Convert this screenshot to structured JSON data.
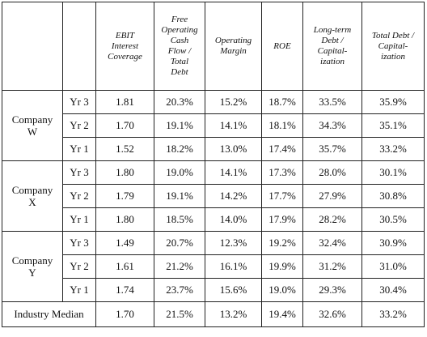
{
  "table": {
    "columns": [
      "EBIT\nInterest\nCoverage",
      "Free\nOperating\nCash\nFlow /\nTotal\nDebt",
      "Operating\nMargin",
      "ROE",
      "Long-term\nDebt /\nCapital-\nization",
      "Total Debt /\nCapital-\nization"
    ],
    "groups": [
      {
        "name": "Company\nW",
        "rows": [
          {
            "year": "Yr 3",
            "cells": [
              "1.81",
              "20.3%",
              "15.2%",
              "18.7%",
              "33.5%",
              "35.9%"
            ]
          },
          {
            "year": "Yr 2",
            "cells": [
              "1.70",
              "19.1%",
              "14.1%",
              "18.1%",
              "34.3%",
              "35.1%"
            ]
          },
          {
            "year": "Yr 1",
            "cells": [
              "1.52",
              "18.2%",
              "13.0%",
              "17.4%",
              "35.7%",
              "33.2%"
            ]
          }
        ]
      },
      {
        "name": "Company\nX",
        "rows": [
          {
            "year": "Yr 3",
            "cells": [
              "1.80",
              "19.0%",
              "14.1%",
              "17.3%",
              "28.0%",
              "30.1%"
            ]
          },
          {
            "year": "Yr 2",
            "cells": [
              "1.79",
              "19.1%",
              "14.2%",
              "17.7%",
              "27.9%",
              "30.8%"
            ]
          },
          {
            "year": "Yr 1",
            "cells": [
              "1.80",
              "18.5%",
              "14.0%",
              "17.9%",
              "28.2%",
              "30.5%"
            ]
          }
        ]
      },
      {
        "name": "Company\nY",
        "rows": [
          {
            "year": "Yr 3",
            "cells": [
              "1.49",
              "20.7%",
              "12.3%",
              "19.2%",
              "32.4%",
              "30.9%"
            ]
          },
          {
            "year": "Yr 2",
            "cells": [
              "1.61",
              "21.2%",
              "16.1%",
              "19.9%",
              "31.2%",
              "31.0%"
            ]
          },
          {
            "year": "Yr 1",
            "cells": [
              "1.74",
              "23.7%",
              "15.6%",
              "19.0%",
              "29.3%",
              "30.4%"
            ]
          }
        ]
      }
    ],
    "median": {
      "label": "Industry Median",
      "cells": [
        "1.70",
        "21.5%",
        "13.2%",
        "19.4%",
        "32.6%",
        "33.2%"
      ]
    }
  }
}
